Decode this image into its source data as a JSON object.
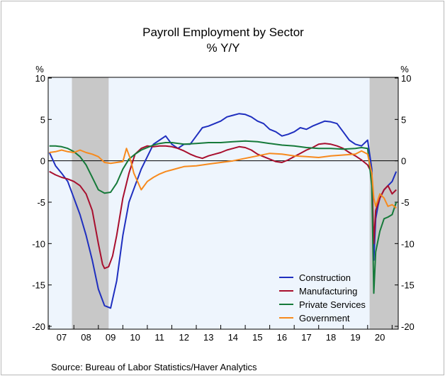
{
  "chart_data": {
    "type": "line",
    "title": "Payroll Employment by Sector",
    "subtitle": "% Y/Y",
    "ylabel_left": "%",
    "ylabel_right": "%",
    "source": "Source:  Bureau of Labor Statistics/Haver Analytics",
    "ylim": [
      -20.5,
      10
    ],
    "yticks": [
      10,
      5,
      0,
      -5,
      -10,
      -15,
      -20
    ],
    "xlim": [
      2006.95,
      2021.25
    ],
    "xtick_labels": [
      "07",
      "08",
      "09",
      "10",
      "11",
      "12",
      "13",
      "14",
      "15",
      "16",
      "17",
      "18",
      "19",
      "20"
    ],
    "xtick_years": [
      2007,
      2008,
      2009,
      2010,
      2011,
      2012,
      2013,
      2014,
      2015,
      2016,
      2017,
      2018,
      2019,
      2020
    ],
    "recessions": [
      [
        2007.92,
        2009.42
      ],
      [
        2020.08,
        2021.25
      ]
    ],
    "legend_position": "lower-right",
    "colors": {
      "plot_background": "#eef5fd",
      "recession_shade": "#c8c8c8",
      "zero_line": "#000000"
    },
    "series": [
      {
        "name": "Construction",
        "color": "#1f2fbf",
        "x": [
          2007.0,
          2007.25,
          2007.5,
          2007.75,
          2008.0,
          2008.25,
          2008.5,
          2008.75,
          2009.0,
          2009.25,
          2009.5,
          2009.75,
          2010.0,
          2010.25,
          2010.5,
          2010.75,
          2011.0,
          2011.25,
          2011.5,
          2011.75,
          2012.0,
          2012.25,
          2012.5,
          2012.75,
          2013.0,
          2013.25,
          2013.5,
          2013.75,
          2014.0,
          2014.25,
          2014.5,
          2014.75,
          2015.0,
          2015.25,
          2015.5,
          2015.75,
          2016.0,
          2016.25,
          2016.5,
          2016.75,
          2017.0,
          2017.25,
          2017.5,
          2017.75,
          2018.0,
          2018.25,
          2018.5,
          2018.75,
          2019.0,
          2019.25,
          2019.5,
          2019.75,
          2020.0,
          2020.17,
          2020.25,
          2020.33,
          2020.42,
          2020.5,
          2020.67,
          2020.83,
          2021.0,
          2021.17
        ],
        "values": [
          1.0,
          -0.6,
          -1.5,
          -2.5,
          -4.5,
          -6.5,
          -9.0,
          -12.0,
          -15.5,
          -17.5,
          -17.8,
          -14.5,
          -9.0,
          -5.0,
          -3.0,
          -1.0,
          0.5,
          2.0,
          2.5,
          3.0,
          2.0,
          1.5,
          2.0,
          2.0,
          3.0,
          4.0,
          4.2,
          4.5,
          4.8,
          5.3,
          5.5,
          5.7,
          5.6,
          5.3,
          4.8,
          4.5,
          3.8,
          3.5,
          3.0,
          3.2,
          3.5,
          4.0,
          3.8,
          4.2,
          4.5,
          4.8,
          4.7,
          4.5,
          3.5,
          2.5,
          2.0,
          1.8,
          2.5,
          -1.0,
          -12.0,
          -7.0,
          -5.5,
          -4.5,
          -3.5,
          -3.0,
          -2.5,
          -1.3
        ]
      },
      {
        "name": "Manufacturing",
        "color": "#a80f2e",
        "x": [
          2007.0,
          2007.25,
          2007.5,
          2007.75,
          2008.0,
          2008.25,
          2008.5,
          2008.75,
          2009.0,
          2009.17,
          2009.25,
          2009.42,
          2009.58,
          2009.75,
          2010.0,
          2010.25,
          2010.5,
          2010.75,
          2011.0,
          2011.25,
          2011.5,
          2011.75,
          2012.0,
          2012.25,
          2012.5,
          2012.75,
          2013.0,
          2013.25,
          2013.5,
          2013.75,
          2014.0,
          2014.25,
          2014.5,
          2014.75,
          2015.0,
          2015.25,
          2015.5,
          2015.75,
          2016.0,
          2016.25,
          2016.5,
          2016.75,
          2017.0,
          2017.25,
          2017.5,
          2017.75,
          2018.0,
          2018.25,
          2018.5,
          2018.75,
          2019.0,
          2019.25,
          2019.5,
          2019.75,
          2020.0,
          2020.17,
          2020.25,
          2020.33,
          2020.5,
          2020.67,
          2020.83,
          2021.0,
          2021.17
        ],
        "values": [
          -1.3,
          -1.7,
          -2.0,
          -2.2,
          -2.5,
          -3.0,
          -4.0,
          -6.0,
          -10.0,
          -12.5,
          -13.0,
          -12.8,
          -11.5,
          -9.0,
          -4.5,
          -1.5,
          0.8,
          1.5,
          1.8,
          1.7,
          1.8,
          1.8,
          1.7,
          1.5,
          1.2,
          0.8,
          0.5,
          0.3,
          0.6,
          0.8,
          1.0,
          1.3,
          1.5,
          1.7,
          1.6,
          1.3,
          0.8,
          0.5,
          0.2,
          -0.1,
          -0.2,
          0.1,
          0.5,
          0.9,
          1.3,
          1.6,
          2.0,
          2.1,
          2.0,
          1.8,
          1.5,
          1.0,
          0.6,
          0.1,
          -0.5,
          -1.5,
          -10.0,
          -6.0,
          -4.5,
          -3.5,
          -3.0,
          -4.0,
          -3.5
        ]
      },
      {
        "name": "Private Services",
        "color": "#167a3a",
        "x": [
          2007.0,
          2007.25,
          2007.5,
          2007.75,
          2008.0,
          2008.25,
          2008.5,
          2008.75,
          2009.0,
          2009.25,
          2009.5,
          2009.75,
          2010.0,
          2010.25,
          2010.5,
          2010.75,
          2011.0,
          2011.25,
          2011.5,
          2011.75,
          2012.0,
          2012.5,
          2013.0,
          2013.5,
          2014.0,
          2014.5,
          2015.0,
          2015.5,
          2016.0,
          2016.5,
          2017.0,
          2017.5,
          2018.0,
          2018.5,
          2019.0,
          2019.5,
          2019.75,
          2020.0,
          2020.17,
          2020.25,
          2020.33,
          2020.5,
          2020.67,
          2020.83,
          2021.0,
          2021.17
        ],
        "values": [
          1.8,
          1.8,
          1.7,
          1.5,
          1.1,
          0.5,
          -0.5,
          -2.0,
          -3.5,
          -3.9,
          -3.8,
          -2.7,
          -1.0,
          0.2,
          0.8,
          1.3,
          1.6,
          1.9,
          2.1,
          2.2,
          2.2,
          2.0,
          2.1,
          2.2,
          2.2,
          2.3,
          2.4,
          2.3,
          2.1,
          1.9,
          1.8,
          1.6,
          1.5,
          1.5,
          1.4,
          1.5,
          1.6,
          1.5,
          -3.0,
          -16.0,
          -11.0,
          -8.5,
          -7.0,
          -6.8,
          -6.5,
          -5.0
        ]
      },
      {
        "name": "Government",
        "color": "#f78a1d",
        "x": [
          2007.0,
          2007.25,
          2007.5,
          2007.75,
          2008.0,
          2008.25,
          2008.5,
          2008.75,
          2009.0,
          2009.25,
          2009.5,
          2009.75,
          2010.0,
          2010.15,
          2010.3,
          2010.45,
          2010.6,
          2010.75,
          2011.0,
          2011.25,
          2011.5,
          2011.75,
          2012.0,
          2012.5,
          2013.0,
          2013.5,
          2014.0,
          2014.5,
          2015.0,
          2015.5,
          2016.0,
          2016.5,
          2017.0,
          2017.5,
          2018.0,
          2018.5,
          2019.0,
          2019.5,
          2019.75,
          2020.0,
          2020.17,
          2020.25,
          2020.33,
          2020.5,
          2020.67,
          2020.83,
          2021.0,
          2021.17
        ],
        "values": [
          1.0,
          1.1,
          1.3,
          1.1,
          1.0,
          1.3,
          1.0,
          0.8,
          0.5,
          -0.2,
          -0.3,
          -0.2,
          -0.1,
          1.5,
          0.3,
          -1.5,
          -2.5,
          -3.5,
          -2.5,
          -2.0,
          -1.6,
          -1.3,
          -1.1,
          -0.7,
          -0.6,
          -0.4,
          -0.2,
          0.0,
          0.3,
          0.6,
          0.9,
          0.8,
          0.6,
          0.5,
          0.4,
          0.6,
          0.7,
          0.8,
          1.2,
          0.8,
          -1.5,
          -4.5,
          -5.5,
          -4.0,
          -4.5,
          -5.5,
          -5.3,
          -5.7
        ]
      }
    ]
  }
}
